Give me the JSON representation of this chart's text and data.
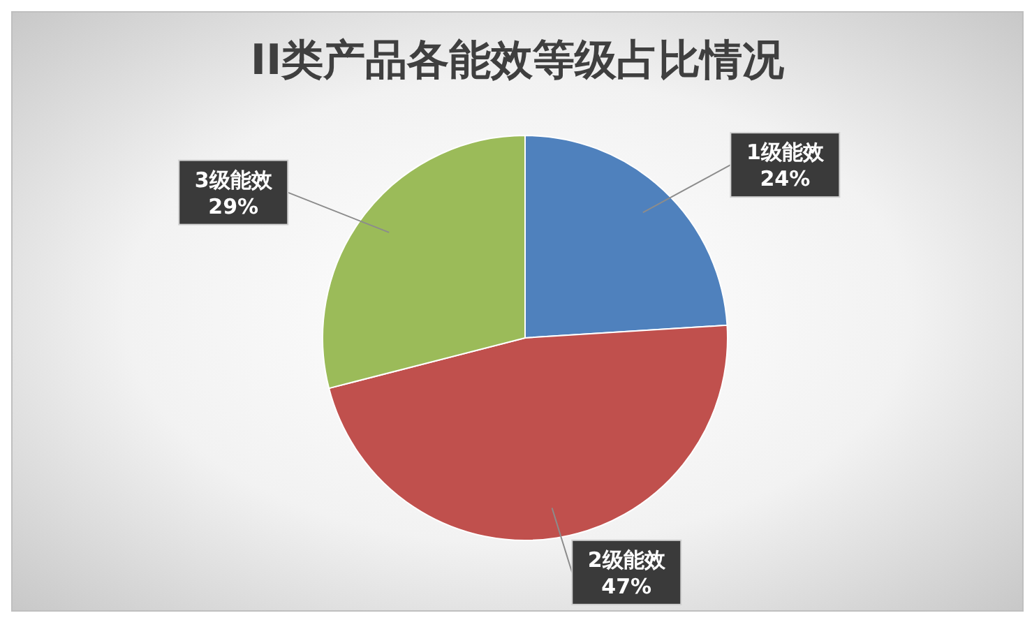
{
  "chart_data": {
    "type": "pie",
    "title": "II类产品各能效等级占比情况",
    "categories": [
      "1级能效",
      "2级能效",
      "3级能效"
    ],
    "values": [
      24,
      47,
      29
    ],
    "value_labels": [
      "24%",
      "47%",
      "29%"
    ],
    "colors": [
      "#4f81bd",
      "#c0504d",
      "#9bbb59"
    ]
  }
}
